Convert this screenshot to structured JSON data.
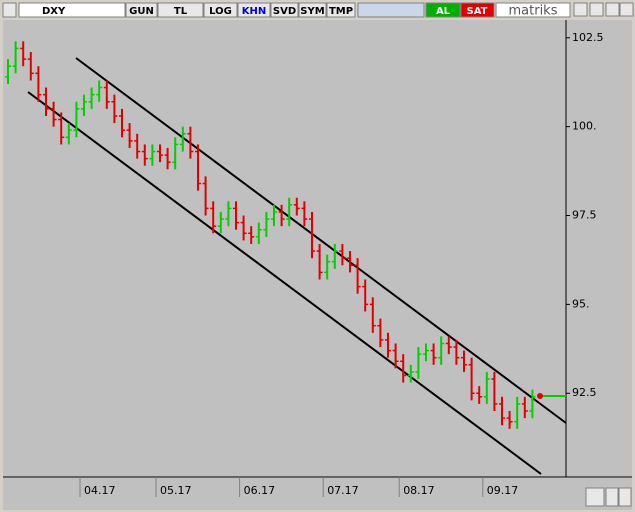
{
  "toolbar": {
    "symbol": "DXY",
    "buttons": [
      "GUN",
      "TL",
      "LOG",
      "KHN",
      "SVD",
      "SYM",
      "TMP"
    ],
    "buy": "AL",
    "sell": "SAT",
    "brand": "matriks"
  },
  "chart_data": {
    "type": "ohlc",
    "categories": [
      null,
      null,
      null,
      null,
      null,
      null,
      null,
      null,
      null,
      null,
      "04.17",
      null,
      null,
      null,
      null,
      null,
      null,
      null,
      null,
      null,
      "05.17",
      null,
      null,
      null,
      null,
      null,
      null,
      null,
      null,
      null,
      null,
      "06.17",
      null,
      null,
      null,
      null,
      null,
      null,
      null,
      null,
      null,
      null,
      "07.17",
      null,
      null,
      null,
      null,
      null,
      null,
      null,
      null,
      null,
      "08.17",
      null,
      null,
      null,
      null,
      null,
      null,
      null,
      null,
      null,
      null,
      "09.17",
      null,
      null,
      null,
      null,
      null,
      null
    ],
    "open": [
      101.4,
      101.7,
      102.2,
      101.9,
      101.5,
      100.9,
      100.5,
      100.2,
      99.7,
      99.9,
      100.5,
      100.7,
      100.9,
      101.1,
      100.7,
      100.3,
      99.9,
      99.6,
      99.3,
      99.1,
      99.3,
      99.2,
      99.0,
      99.5,
      99.8,
      99.3,
      98.4,
      97.7,
      97.2,
      97.4,
      97.7,
      97.3,
      97.0,
      96.9,
      97.1,
      97.4,
      97.6,
      97.4,
      97.8,
      97.7,
      97.4,
      96.5,
      95.9,
      96.2,
      96.5,
      96.3,
      96.1,
      95.5,
      95.0,
      94.4,
      94.0,
      93.7,
      93.4,
      93.0,
      93.1,
      93.6,
      93.7,
      93.5,
      93.9,
      93.8,
      93.5,
      93.3,
      92.5,
      92.4,
      92.9,
      92.2,
      91.8,
      91.7,
      92.2,
      92.0
    ],
    "high": [
      101.9,
      102.4,
      102.4,
      102.1,
      101.7,
      101.1,
      100.7,
      100.4,
      100.1,
      100.7,
      100.9,
      101.1,
      101.3,
      101.3,
      100.9,
      100.5,
      100.1,
      99.8,
      99.5,
      99.5,
      99.5,
      99.4,
      99.7,
      100.0,
      100.0,
      99.5,
      98.6,
      97.9,
      97.6,
      97.9,
      97.9,
      97.5,
      97.2,
      97.3,
      97.6,
      97.8,
      97.8,
      98.0,
      98.0,
      97.9,
      97.6,
      96.7,
      96.4,
      96.7,
      96.7,
      96.5,
      96.3,
      95.7,
      95.2,
      94.6,
      94.2,
      93.9,
      93.6,
      93.3,
      93.8,
      93.9,
      93.9,
      94.1,
      94.1,
      94.0,
      93.7,
      93.5,
      92.7,
      93.1,
      93.1,
      92.4,
      92.0,
      92.4,
      92.4,
      92.6
    ],
    "low": [
      101.2,
      101.5,
      101.7,
      101.3,
      100.7,
      100.3,
      100.0,
      99.5,
      99.5,
      99.7,
      100.3,
      100.5,
      100.7,
      100.5,
      100.1,
      99.7,
      99.4,
      99.1,
      98.9,
      98.9,
      99.0,
      98.8,
      98.8,
      99.3,
      99.1,
      98.2,
      97.5,
      97.0,
      97.0,
      97.2,
      97.1,
      96.8,
      96.7,
      96.7,
      96.9,
      97.2,
      97.2,
      97.2,
      97.5,
      97.2,
      96.3,
      95.7,
      95.7,
      96.0,
      96.1,
      95.9,
      95.3,
      94.8,
      94.2,
      93.8,
      93.5,
      93.2,
      92.8,
      92.8,
      92.9,
      93.4,
      93.3,
      93.3,
      93.6,
      93.3,
      93.1,
      92.3,
      92.2,
      92.2,
      92.0,
      91.6,
      91.5,
      91.5,
      91.8,
      91.8
    ],
    "close": [
      101.7,
      102.2,
      101.9,
      101.5,
      100.9,
      100.5,
      100.2,
      99.7,
      99.9,
      100.5,
      100.7,
      100.9,
      101.1,
      100.7,
      100.3,
      99.9,
      99.6,
      99.3,
      99.1,
      99.3,
      99.2,
      99.0,
      99.5,
      99.8,
      99.3,
      98.4,
      97.7,
      97.2,
      97.4,
      97.7,
      97.3,
      97.0,
      96.9,
      97.1,
      97.4,
      97.6,
      97.4,
      97.8,
      97.7,
      97.4,
      96.5,
      95.9,
      96.2,
      96.5,
      96.3,
      96.1,
      95.5,
      95.0,
      94.4,
      94.0,
      93.7,
      93.4,
      93.0,
      93.1,
      93.6,
      93.7,
      93.5,
      93.9,
      93.8,
      93.5,
      93.3,
      92.5,
      92.4,
      92.9,
      92.2,
      91.8,
      91.7,
      92.2,
      92.0,
      92.4
    ],
    "colors": {
      "up": "#00d000",
      "down": "#e00000"
    },
    "ylim": [
      90.2,
      103.0
    ],
    "yticks": [
      {
        "value": 92.5,
        "label": "92.5"
      },
      {
        "value": 95,
        "label": "95."
      },
      {
        "value": 97.5,
        "label": "97.5"
      },
      {
        "value": 100,
        "label": "100."
      },
      {
        "value": 102.5,
        "label": "102.5"
      }
    ]
  }
}
